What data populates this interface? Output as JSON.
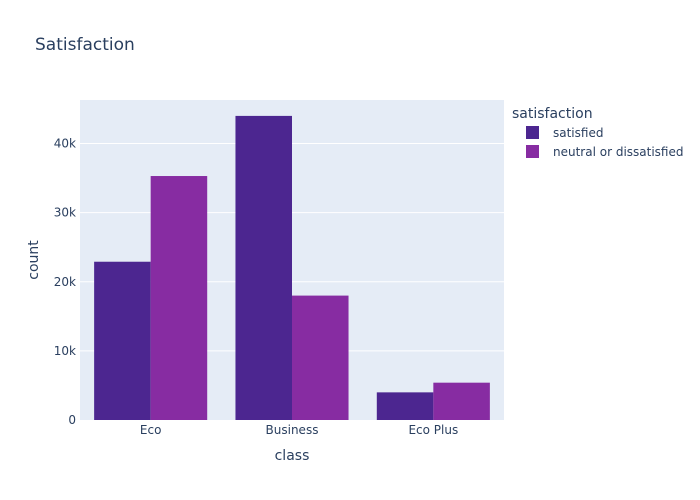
{
  "chart_data": {
    "type": "bar",
    "title": "Satisfaction",
    "xlabel": "class",
    "ylabel": "count",
    "categories": [
      "Eco",
      "Business",
      "Eco Plus"
    ],
    "series": [
      {
        "name": "satisfied",
        "values": [
          22900,
          44000,
          4000
        ],
        "color": "#4c2690"
      },
      {
        "name": "neutral or dissatisfied",
        "values": [
          35300,
          18000,
          5400
        ],
        "color": "#872ca2"
      }
    ],
    "ylim": [
      0,
      46300
    ],
    "yticks": [
      0,
      10000,
      20000,
      30000,
      40000
    ],
    "ytick_labels": [
      "0",
      "10k",
      "20k",
      "30k",
      "40k"
    ],
    "grid": true,
    "legend": {
      "title": "satisfaction",
      "placement": "top-right"
    },
    "colors": {
      "plot_bg": "#e5ecf6",
      "grid": "#ffffff",
      "text": "#2a3f5f"
    }
  }
}
